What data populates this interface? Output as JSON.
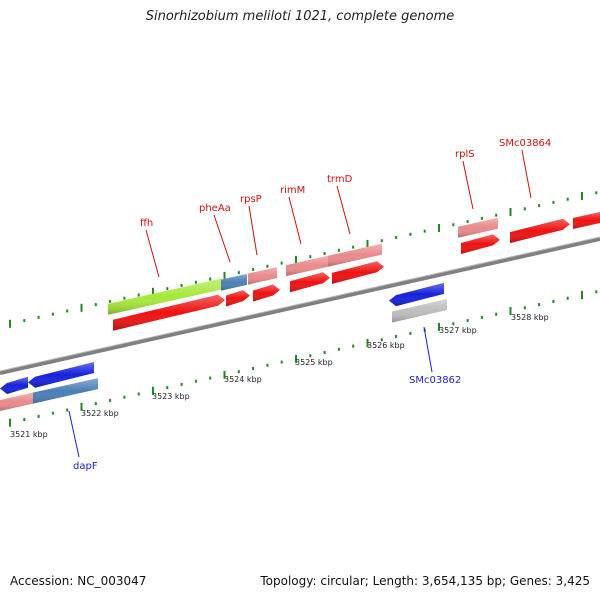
{
  "title": "Sinorhizobium meliloti 1021, complete genome",
  "footer": {
    "accession": "Accession: NC_003047",
    "summary": "Topology: circular; Length: 3,654,135 bp; Genes: 3,425"
  },
  "colors": {
    "forward_gene": "#ee1111",
    "forward_gene_light": "#e98a8a",
    "reverse_gene": "#1522dd",
    "reverse_gene_mid": "#4a7fb5",
    "highlight_gene": "#a6e83a",
    "grey_gene": "#bdbdbd",
    "backbone": "#808080",
    "tick": "#1f8a1f"
  },
  "scale_labels": [
    "3521 kbp",
    "3522 kbp",
    "3523 kbp",
    "3524 kbp",
    "3525 kbp",
    "3526 kbp",
    "3527 kbp",
    "3528 kbp"
  ],
  "gene_labels": [
    {
      "name": "ffh",
      "strand": "forward"
    },
    {
      "name": "pheAa",
      "strand": "forward"
    },
    {
      "name": "rpsP",
      "strand": "forward"
    },
    {
      "name": "rimM",
      "strand": "forward"
    },
    {
      "name": "trmD",
      "strand": "forward"
    },
    {
      "name": "rplS",
      "strand": "forward"
    },
    {
      "name": "SMc03864",
      "strand": "forward"
    },
    {
      "name": "SMc03862",
      "strand": "reverse"
    },
    {
      "name": "dapF",
      "strand": "reverse"
    }
  ]
}
